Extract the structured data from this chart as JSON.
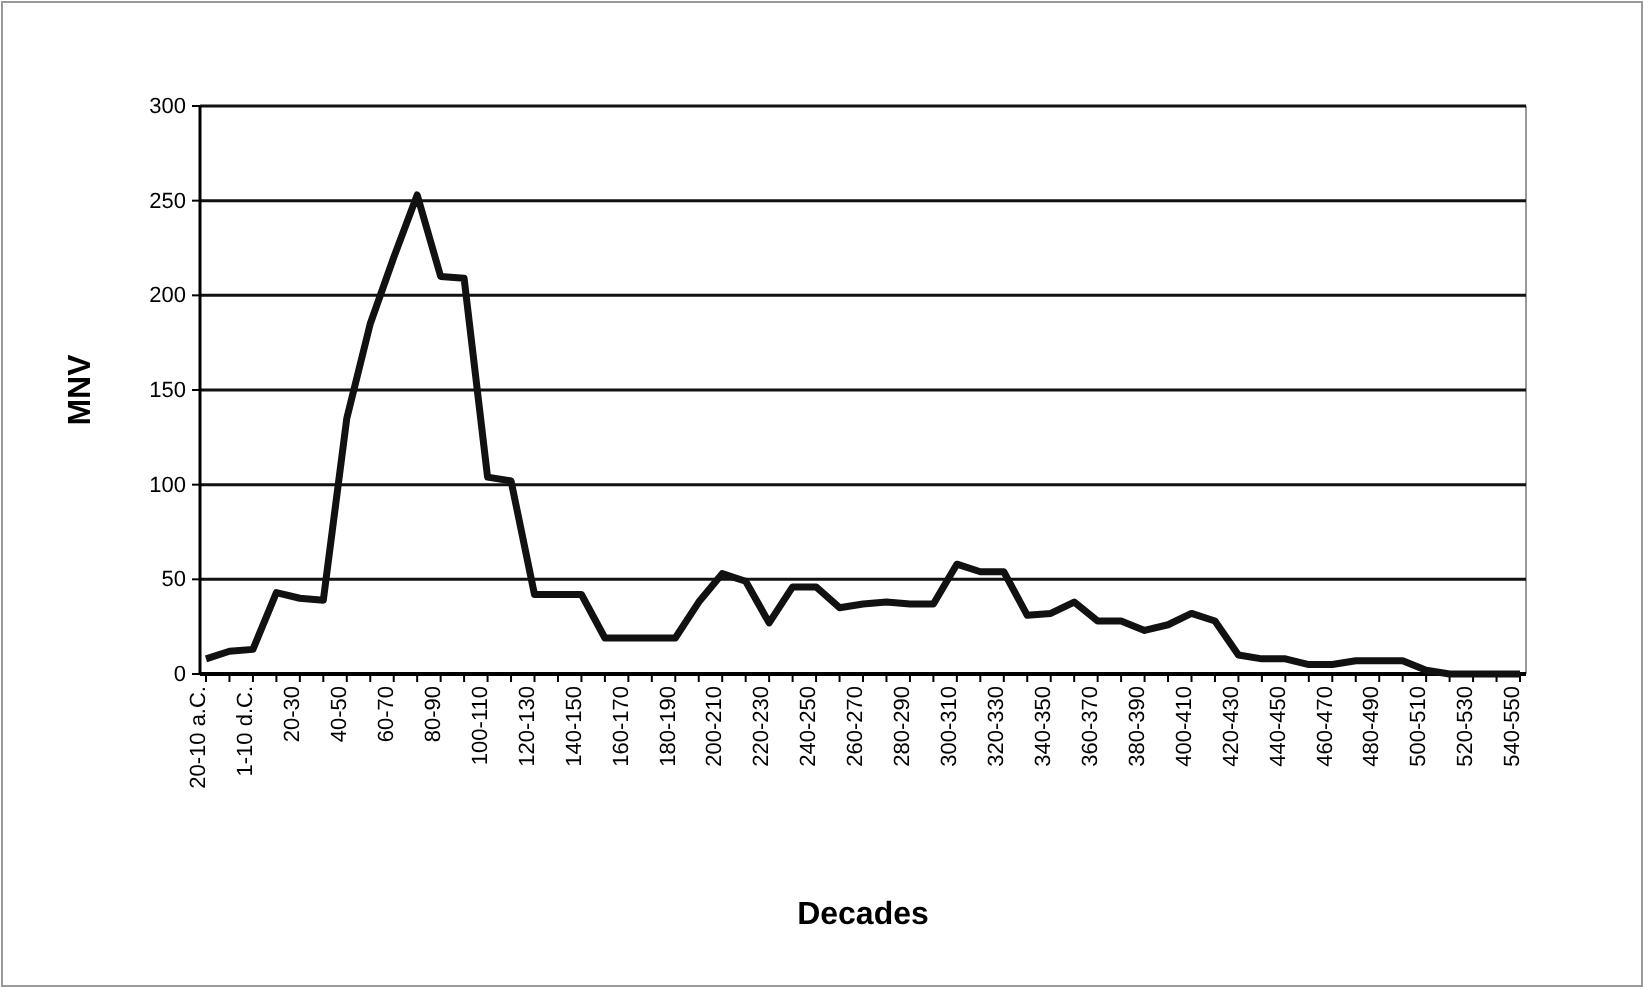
{
  "chart_data": {
    "type": "line",
    "xlabel": "Decades",
    "ylabel": "MNV",
    "categories": [
      "20-10 a.C.",
      null,
      "1-10 d.C.",
      null,
      "20-30",
      null,
      "40-50",
      null,
      "60-70",
      null,
      "80-90",
      null,
      "100-110",
      null,
      "120-130",
      null,
      "140-150",
      null,
      "160-170",
      null,
      "180-190",
      null,
      "200-210",
      null,
      "220-230",
      null,
      "240-250",
      null,
      "260-270",
      null,
      "280-290",
      null,
      "300-310",
      null,
      "320-330",
      null,
      "340-350",
      null,
      "360-370",
      null,
      "380-390",
      null,
      "400-410",
      null,
      "420-430",
      null,
      "440-450",
      null,
      "460-470",
      null,
      "480-490",
      null,
      "500-510",
      null,
      "520-530",
      null,
      "540-550"
    ],
    "series": [
      {
        "color": "#111111",
        "values": [
          8,
          12,
          13,
          43,
          40,
          39,
          135,
          185,
          220,
          253,
          210,
          209,
          104,
          102,
          42,
          42,
          42,
          19,
          19,
          19,
          19,
          38,
          53,
          49,
          27,
          46,
          46,
          35,
          37,
          38,
          37,
          37,
          58,
          54,
          54,
          31,
          32,
          38,
          28,
          28,
          23,
          26,
          32,
          28,
          10,
          8,
          8,
          5,
          5,
          7,
          7,
          7,
          2,
          0,
          0,
          0,
          0
        ]
      }
    ],
    "ylim": [
      0,
      300
    ],
    "yticks": [
      0,
      50,
      100,
      150,
      200,
      250,
      300
    ],
    "grid": "y",
    "marker": "none",
    "line_style": "solid"
  }
}
